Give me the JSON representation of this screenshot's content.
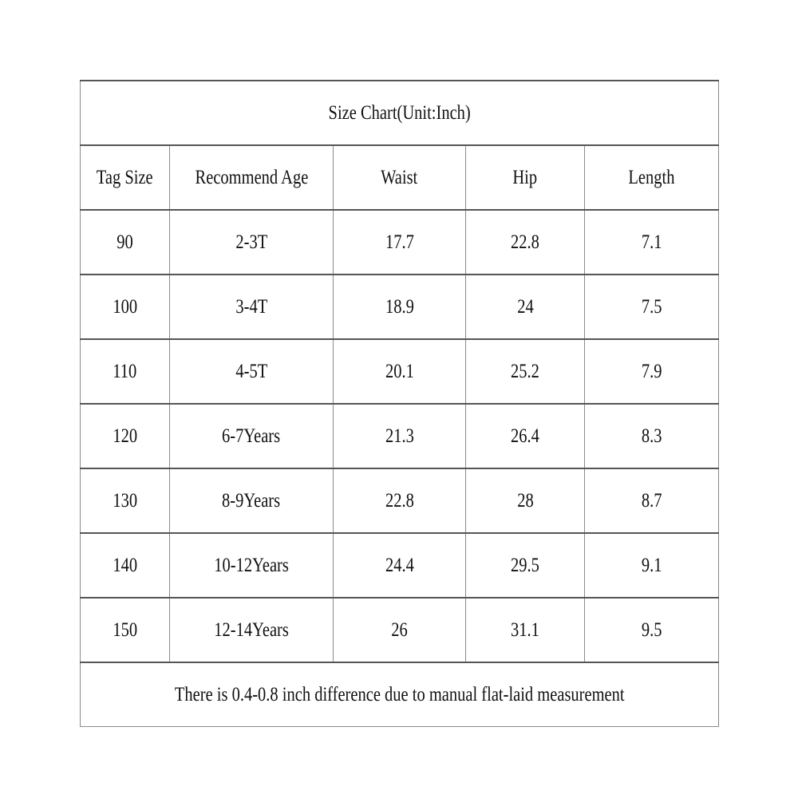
{
  "title": "Size Chart(Unit:Inch)",
  "headers": [
    "Tag Size",
    "Recommend Age",
    "Waist",
    "Hip",
    "Length"
  ],
  "rows": [
    [
      "90",
      "2-3T",
      "17.7",
      "22.8",
      "7.1"
    ],
    [
      "100",
      "3-4T",
      "18.9",
      "24",
      "7.5"
    ],
    [
      "110",
      "4-5T",
      "20.1",
      "25.2",
      "7.9"
    ],
    [
      "120",
      "6-7Years",
      "21.3",
      "26.4",
      "8.3"
    ],
    [
      "130",
      "8-9Years",
      "22.8",
      "28",
      "8.7"
    ],
    [
      "140",
      "10-12Years",
      "24.4",
      "29.5",
      "9.1"
    ],
    [
      "150",
      "12-14Years",
      "26",
      "31.1",
      "9.5"
    ]
  ],
  "note": "There is 0.4-0.8 inch difference due to manual flat-laid measurement"
}
